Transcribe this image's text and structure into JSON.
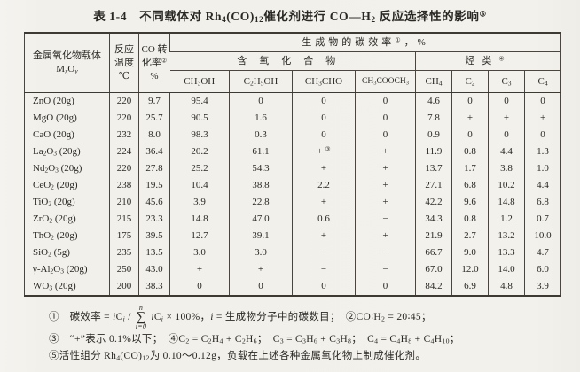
{
  "page": {
    "background": "#f3f1ec",
    "ink": "#2a2824",
    "rule_color": "#3d3a34"
  },
  "title_html": "表 1-4&emsp;不同载体对 Rh<sub>4</sub>(CO)<sub>12</sub>催化剂进行 CO—H<sub>2</sub> 反应选择性的影响<sup>⑤</sup>",
  "table": {
    "header": {
      "oxide_line1": "金属氧化物载体",
      "oxide_line2_html": "M<sub><i>x</i></sub>O<sub><i>y</i></sub>",
      "temp_html": "反应<br>温度<br>℃",
      "conv_html": "CO 转<br>化率<sup>②</sup><br>%",
      "group_carbon_eff_html": "生成物的碳效率<sup>①</sup>，%",
      "group_oxygenates": "含氧化合物",
      "group_hydrocarbons_html": "烃类<sup>④</sup>",
      "product_cols_html": [
        "CH<sub>3</sub>OH",
        "C<sub>2</sub>H<sub>5</sub>OH",
        "CH<sub>3</sub>CHO",
        "CH<sub>3</sub>COOCH<sub>3</sub>",
        "CH<sub>4</sub>",
        "C<sub>2</sub>",
        "C<sub>3</sub>",
        "C<sub>4</sub>"
      ]
    },
    "rows": [
      {
        "oxide_html": "ZnO (20g)",
        "temp": "220",
        "conv": "9.7",
        "values": [
          "95.4",
          "0",
          "0",
          "0",
          "4.6",
          "0",
          "0",
          "0"
        ]
      },
      {
        "oxide_html": "MgO (20g)",
        "temp": "220",
        "conv": "25.7",
        "values": [
          "90.5",
          "1.6",
          "0",
          "0",
          "7.8",
          "+",
          "+",
          "+"
        ]
      },
      {
        "oxide_html": "CaO (20g)",
        "temp": "232",
        "conv": "8.0",
        "values": [
          "98.3",
          "0.3",
          "0",
          "0",
          "0.9",
          "0",
          "0",
          "0"
        ]
      },
      {
        "oxide_html": "La<sub>2</sub>O<sub>3</sub> (20g)",
        "temp": "224",
        "conv": "36.4",
        "values": [
          "20.2",
          "61.1",
          "+ <sup>③</sup>",
          "+",
          "11.9",
          "0.8",
          "4.4",
          "1.3"
        ]
      },
      {
        "oxide_html": "Nd<sub>2</sub>O<sub>3</sub> (20g)",
        "temp": "220",
        "conv": "27.8",
        "values": [
          "25.2",
          "54.3",
          "+",
          "+",
          "13.7",
          "1.7",
          "3.8",
          "1.0"
        ]
      },
      {
        "oxide_html": "CeO<sub>2</sub> (20g)",
        "temp": "238",
        "conv": "19.5",
        "values": [
          "10.4",
          "38.8",
          "2.2",
          "+",
          "27.1",
          "6.8",
          "10.2",
          "4.4"
        ]
      },
      {
        "oxide_html": "TiO<sub>2</sub> (20g)",
        "temp": "210",
        "conv": "45.6",
        "values": [
          "3.9",
          "22.8",
          "+",
          "+",
          "42.2",
          "9.6",
          "14.8",
          "6.8"
        ]
      },
      {
        "oxide_html": "ZrO<sub>2</sub> (20g)",
        "temp": "215",
        "conv": "23.3",
        "values": [
          "14.8",
          "47.0",
          "0.6",
          "−",
          "34.3",
          "0.8",
          "1.2",
          "0.7"
        ]
      },
      {
        "oxide_html": "ThO<sub>2</sub> (20g)",
        "temp": "175",
        "conv": "39.5",
        "values": [
          "12.7",
          "39.1",
          "+",
          "+",
          "21.9",
          "2.7",
          "13.2",
          "10.0"
        ]
      },
      {
        "oxide_html": "SiO<sub>2</sub> (5g)",
        "temp": "235",
        "conv": "13.5",
        "values": [
          "3.0",
          "3.0",
          "−",
          "−",
          "66.7",
          "9.0",
          "13.3",
          "4.7"
        ]
      },
      {
        "oxide_html": "γ-Al<sub>2</sub>O<sub>3</sub> (20g)",
        "temp": "250",
        "conv": "43.0",
        "values": [
          "+",
          "+",
          "−",
          "−",
          "67.0",
          "12.0",
          "14.0",
          "6.0"
        ]
      },
      {
        "oxide_html": "WO<sub>3</sub> (20g)",
        "temp": "200",
        "conv": "38.3",
        "values": [
          "0",
          "0",
          "0",
          "0",
          "84.2",
          "6.9",
          "4.8",
          "3.9"
        ]
      }
    ]
  },
  "footnotes": {
    "fn1_pre_html": "①　碳效率 = <i>i</i>C<sub><i>i</i></sub> /",
    "sigma": {
      "top": "n",
      "symbol": "∑",
      "bottom": "i=0"
    },
    "fn1_post_html": "<i>i</i>C<sub><i>i</i></sub> × 100%，<i>i</i> = 生成物分子中的碳数目；　②CO∶H<sub>2</sub> = 20∶45；",
    "fn2_html": "③　“+”表示 0.1%以下；　④C<sub>2</sub> = C<sub>2</sub>H<sub>4</sub> + C<sub>2</sub>H<sub>6</sub>；　C<sub>3</sub> = C<sub>3</sub>H<sub>6</sub> + C<sub>3</sub>H<sub>8</sub>；　C<sub>4</sub> = C<sub>4</sub>H<sub>8</sub> + C<sub>4</sub>H<sub>10</sub>；",
    "fn3_html": "⑤活性组分 Rh<sub>4</sub>(CO)<sub>12</sub>为 0.10～0.12g，负载在上述各种金属氧化物上制成催化剂。"
  }
}
